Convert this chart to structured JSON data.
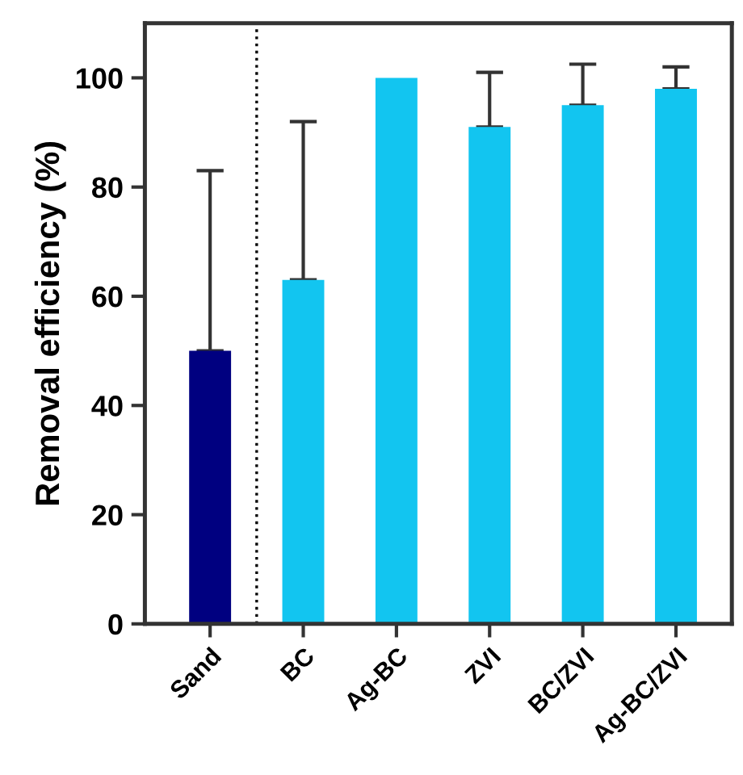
{
  "chart_data": {
    "type": "bar",
    "ylabel": "Removal efficiency (%)",
    "categories": [
      "Sand",
      "BC",
      "Ag-BC",
      "ZVI",
      "BC/ZVI",
      "Ag-BC/ZVI"
    ],
    "values": [
      50,
      63,
      100,
      91,
      95,
      98
    ],
    "colors": [
      "#000080",
      "#12c5f0",
      "#12c5f0",
      "#12c5f0",
      "#12c5f0",
      "#12c5f0"
    ],
    "errors": [
      [
        50,
        83
      ],
      [
        63,
        92
      ],
      null,
      [
        91,
        101
      ],
      [
        95,
        102.5
      ],
      [
        98,
        102
      ]
    ],
    "ylim": [
      0,
      110
    ],
    "yticks": [
      0,
      20,
      40,
      60,
      80,
      100
    ],
    "grid": false
  }
}
